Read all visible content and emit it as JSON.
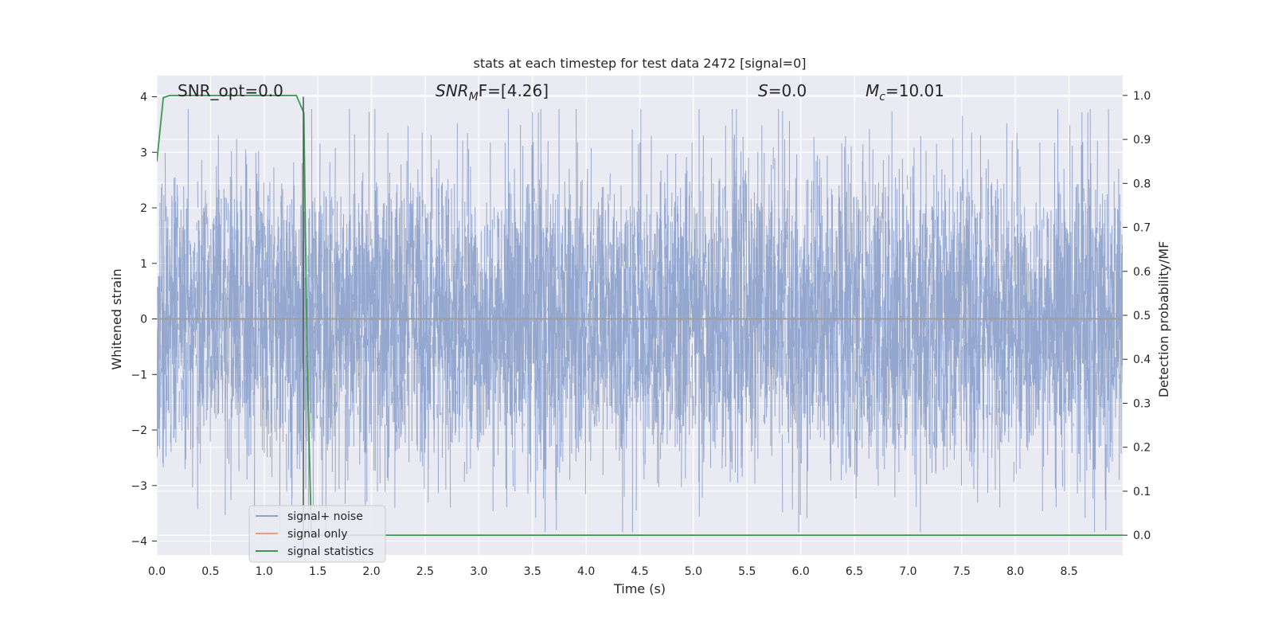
{
  "chart_data": {
    "type": "line",
    "title": "stats at each timestep for test data 2472 [signal=0]",
    "xlabel": "Time (s)",
    "ylabel_left": "Whitened strain",
    "ylabel_right": "Detection probability/MF",
    "xlim": [
      0,
      9.0
    ],
    "ylim_left": [
      -4.25,
      4.38
    ],
    "ylim_right": [
      -0.045,
      1.045
    ],
    "x_ticks": [
      "0.0",
      "0.5",
      "1.0",
      "1.5",
      "2.0",
      "2.5",
      "3.0",
      "3.5",
      "4.0",
      "4.5",
      "5.0",
      "5.5",
      "6.0",
      "6.5",
      "7.0",
      "7.5",
      "8.0",
      "8.5"
    ],
    "y_left_ticks": [
      "−4",
      "−3",
      "−2",
      "−1",
      "0",
      "1",
      "2",
      "3",
      "4"
    ],
    "y_right_ticks": [
      "0.0",
      "0.1",
      "0.2",
      "0.3",
      "0.4",
      "0.5",
      "0.6",
      "0.7",
      "0.8",
      "0.9",
      "1.0"
    ],
    "grid": true,
    "annotations": [
      {
        "prefix": "SNR_opt=0.0",
        "sub": "",
        "suffix": "",
        "italic": false
      },
      {
        "prefix": "SNR",
        "sub": "M",
        "suffix": "F=[4.26]",
        "italic": true
      },
      {
        "prefix": "S",
        "sub": "",
        "suffix": "=0.0",
        "italic": true
      },
      {
        "prefix": "M",
        "sub": "c",
        "suffix": "=10.01",
        "italic": true
      }
    ],
    "legend": {
      "placement": "lower-left",
      "entries": [
        "signal+ noise",
        "signal only",
        "signal statistics"
      ]
    },
    "series": [
      {
        "name": "signal+ noise",
        "axis": "left",
        "color": "#8fa3cc",
        "kind": "noise",
        "amplitude_range": [
          -3.84,
          3.78
        ],
        "typical_sd": 0.8,
        "x_range": [
          0,
          9.0
        ]
      },
      {
        "name": "signal only",
        "axis": "left",
        "color": "#e8a07e",
        "kind": "flat",
        "value": 0,
        "x_range": [
          0,
          9.0
        ]
      },
      {
        "name": "signal statistics",
        "axis": "right",
        "color": "#3a9a52",
        "kind": "line",
        "x": [
          0.0,
          0.06,
          0.12,
          0.3,
          0.6,
          0.9,
          1.2,
          1.3,
          1.37,
          1.4,
          1.44,
          1.6,
          2.5,
          4.0,
          6.0,
          8.0,
          9.0
        ],
        "y": [
          0.85,
          0.995,
          1.0,
          1.0,
          1.0,
          1.0,
          1.0,
          1.0,
          0.96,
          0.4,
          0.0,
          0.0,
          0.0,
          0.0,
          0.0,
          0.0,
          0.0
        ]
      },
      {
        "name": "vertical marker",
        "axis": "left",
        "color": "#555555",
        "kind": "vline",
        "x": 1.365,
        "y_range": [
          -4.25,
          4.0
        ]
      }
    ],
    "colors": {
      "plot_bg": "#eaeaf2",
      "grid": "#ffffff",
      "text": "#262626"
    }
  }
}
